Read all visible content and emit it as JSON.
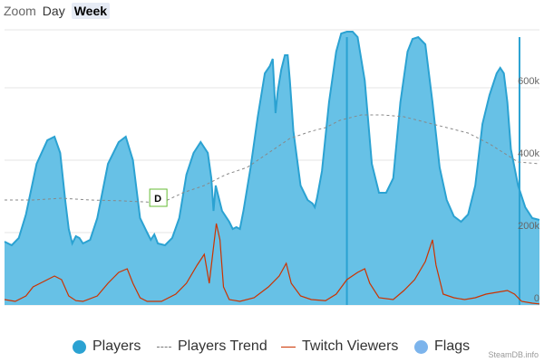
{
  "zoom": {
    "label": "Zoom",
    "buttons": [
      {
        "label": "Day",
        "active": false
      },
      {
        "label": "Week",
        "active": true
      }
    ]
  },
  "credit": "SteamDB.info",
  "colors": {
    "players_fill": "#67c1e6",
    "players_line": "#2ba2d2",
    "trend": "#888888",
    "twitch": "#cc3300",
    "flags": "#7cb4ec",
    "grid": "#e6e6e6"
  },
  "chart_data": {
    "type": "area",
    "title": "",
    "xlabel": "",
    "ylabel": "",
    "x_range": [
      0,
      7.5
    ],
    "ylim": [
      0,
      760000
    ],
    "y_ticks": [
      {
        "value": 0,
        "label": "0"
      },
      {
        "value": 200000,
        "label": "200k"
      },
      {
        "value": 400000,
        "label": "400k"
      },
      {
        "value": 600000,
        "label": "600k"
      }
    ],
    "grid": true,
    "legend_position": "bottom",
    "series": [
      {
        "name": "Players",
        "kind": "area",
        "color": "#67c1e6",
        "points": [
          [
            0,
            175000
          ],
          [
            0.1,
            165000
          ],
          [
            0.2,
            185000
          ],
          [
            0.3,
            250000
          ],
          [
            0.45,
            390000
          ],
          [
            0.6,
            455000
          ],
          [
            0.7,
            465000
          ],
          [
            0.78,
            420000
          ],
          [
            0.85,
            290000
          ],
          [
            0.9,
            210000
          ],
          [
            0.95,
            170000
          ],
          [
            1.0,
            190000
          ],
          [
            1.05,
            185000
          ],
          [
            1.1,
            170000
          ],
          [
            1.2,
            180000
          ],
          [
            1.3,
            240000
          ],
          [
            1.45,
            390000
          ],
          [
            1.6,
            450000
          ],
          [
            1.7,
            465000
          ],
          [
            1.8,
            400000
          ],
          [
            1.9,
            240000
          ],
          [
            2.0,
            200000
          ],
          [
            2.05,
            180000
          ],
          [
            2.1,
            195000
          ],
          [
            2.15,
            170000
          ],
          [
            2.25,
            165000
          ],
          [
            2.35,
            185000
          ],
          [
            2.45,
            240000
          ],
          [
            2.55,
            360000
          ],
          [
            2.65,
            420000
          ],
          [
            2.75,
            450000
          ],
          [
            2.85,
            420000
          ],
          [
            2.9,
            350000
          ],
          [
            2.93,
            260000
          ],
          [
            2.96,
            330000
          ],
          [
            3.05,
            260000
          ],
          [
            3.15,
            230000
          ],
          [
            3.2,
            210000
          ],
          [
            3.25,
            215000
          ],
          [
            3.3,
            210000
          ],
          [
            3.35,
            260000
          ],
          [
            3.45,
            380000
          ],
          [
            3.55,
            520000
          ],
          [
            3.65,
            640000
          ],
          [
            3.72,
            660000
          ],
          [
            3.76,
            680000
          ],
          [
            3.8,
            530000
          ],
          [
            3.83,
            590000
          ],
          [
            3.88,
            650000
          ],
          [
            3.93,
            690000
          ],
          [
            3.97,
            690000
          ],
          [
            4.0,
            620000
          ],
          [
            4.05,
            480000
          ],
          [
            4.15,
            330000
          ],
          [
            4.25,
            290000
          ],
          [
            4.32,
            280000
          ],
          [
            4.35,
            270000
          ],
          [
            4.38,
            295000
          ],
          [
            4.45,
            370000
          ],
          [
            4.55,
            560000
          ],
          [
            4.65,
            700000
          ],
          [
            4.72,
            750000
          ],
          [
            4.8,
            755000
          ],
          [
            4.88,
            755000
          ],
          [
            4.95,
            740000
          ],
          [
            5.05,
            620000
          ],
          [
            5.15,
            390000
          ],
          [
            5.25,
            310000
          ],
          [
            5.35,
            310000
          ],
          [
            5.45,
            350000
          ],
          [
            5.55,
            560000
          ],
          [
            5.65,
            700000
          ],
          [
            5.72,
            735000
          ],
          [
            5.8,
            740000
          ],
          [
            5.9,
            720000
          ],
          [
            6.0,
            560000
          ],
          [
            6.1,
            380000
          ],
          [
            6.2,
            290000
          ],
          [
            6.3,
            245000
          ],
          [
            6.4,
            230000
          ],
          [
            6.5,
            250000
          ],
          [
            6.6,
            330000
          ],
          [
            6.7,
            500000
          ],
          [
            6.8,
            580000
          ],
          [
            6.9,
            640000
          ],
          [
            6.95,
            655000
          ],
          [
            7.0,
            640000
          ],
          [
            7.05,
            560000
          ],
          [
            7.1,
            430000
          ],
          [
            7.2,
            330000
          ],
          [
            7.3,
            270000
          ],
          [
            7.4,
            240000
          ],
          [
            7.5,
            235000
          ]
        ]
      },
      {
        "name": "Players Trend",
        "kind": "dashed-line",
        "color": "#888888",
        "points": [
          [
            0,
            290000
          ],
          [
            0.4,
            290000
          ],
          [
            0.8,
            295000
          ],
          [
            1.2,
            290000
          ],
          [
            1.6,
            288000
          ],
          [
            1.95,
            285000
          ],
          [
            2.2,
            282000
          ],
          [
            2.5,
            310000
          ],
          [
            2.8,
            330000
          ],
          [
            3.1,
            360000
          ],
          [
            3.4,
            380000
          ],
          [
            3.7,
            420000
          ],
          [
            4.0,
            460000
          ],
          [
            4.3,
            480000
          ],
          [
            4.5,
            490000
          ],
          [
            4.7,
            510000
          ],
          [
            5.0,
            525000
          ],
          [
            5.3,
            525000
          ],
          [
            5.6,
            520000
          ],
          [
            5.9,
            505000
          ],
          [
            6.2,
            490000
          ],
          [
            6.5,
            475000
          ],
          [
            6.8,
            445000
          ],
          [
            7.0,
            420000
          ],
          [
            7.2,
            395000
          ],
          [
            7.5,
            390000
          ]
        ]
      },
      {
        "name": "Twitch Viewers",
        "kind": "line",
        "color": "#cc3300",
        "points": [
          [
            0,
            15000
          ],
          [
            0.15,
            10000
          ],
          [
            0.3,
            25000
          ],
          [
            0.4,
            50000
          ],
          [
            0.55,
            65000
          ],
          [
            0.7,
            80000
          ],
          [
            0.8,
            70000
          ],
          [
            0.9,
            25000
          ],
          [
            1.0,
            12000
          ],
          [
            1.1,
            10000
          ],
          [
            1.3,
            25000
          ],
          [
            1.45,
            60000
          ],
          [
            1.6,
            90000
          ],
          [
            1.72,
            100000
          ],
          [
            1.8,
            60000
          ],
          [
            1.9,
            20000
          ],
          [
            2.0,
            10000
          ],
          [
            2.2,
            10000
          ],
          [
            2.4,
            30000
          ],
          [
            2.55,
            60000
          ],
          [
            2.7,
            110000
          ],
          [
            2.8,
            140000
          ],
          [
            2.87,
            60000
          ],
          [
            2.93,
            160000
          ],
          [
            2.97,
            225000
          ],
          [
            3.02,
            180000
          ],
          [
            3.07,
            50000
          ],
          [
            3.15,
            15000
          ],
          [
            3.3,
            10000
          ],
          [
            3.5,
            20000
          ],
          [
            3.7,
            50000
          ],
          [
            3.85,
            80000
          ],
          [
            3.95,
            115000
          ],
          [
            4.02,
            60000
          ],
          [
            4.15,
            25000
          ],
          [
            4.3,
            15000
          ],
          [
            4.5,
            12000
          ],
          [
            4.65,
            30000
          ],
          [
            4.8,
            70000
          ],
          [
            4.95,
            90000
          ],
          [
            5.05,
            100000
          ],
          [
            5.12,
            60000
          ],
          [
            5.25,
            20000
          ],
          [
            5.45,
            15000
          ],
          [
            5.6,
            40000
          ],
          [
            5.75,
            70000
          ],
          [
            5.9,
            120000
          ],
          [
            6.0,
            180000
          ],
          [
            6.05,
            110000
          ],
          [
            6.15,
            30000
          ],
          [
            6.3,
            20000
          ],
          [
            6.45,
            15000
          ],
          [
            6.6,
            20000
          ],
          [
            6.75,
            30000
          ],
          [
            6.9,
            35000
          ],
          [
            7.05,
            40000
          ],
          [
            7.15,
            30000
          ],
          [
            7.25,
            10000
          ],
          [
            7.4,
            5000
          ],
          [
            7.5,
            3000
          ]
        ]
      },
      {
        "name": "Flags",
        "kind": "flags",
        "color": "#7cb4ec",
        "markers": [
          {
            "x": 2.15,
            "text": "D"
          }
        ]
      }
    ],
    "event_lines": [
      4.8,
      7.22
    ]
  }
}
